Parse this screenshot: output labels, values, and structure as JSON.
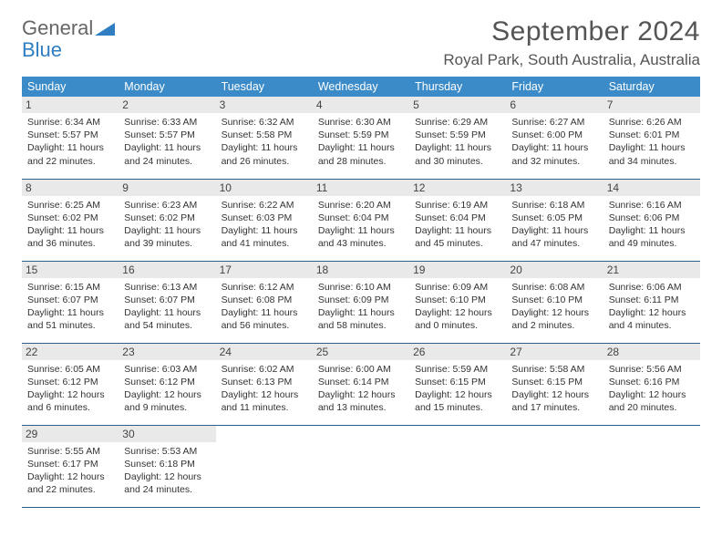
{
  "logo": {
    "text1": "General",
    "text2": "Blue"
  },
  "title": "September 2024",
  "location": "Royal Park, South Australia, Australia",
  "colors": {
    "header_bg": "#3b8bc9",
    "header_text": "#ffffff",
    "border": "#2f5d8c",
    "daynum_bg": "#e9e9e9",
    "text": "#333333",
    "logo_gray": "#666666",
    "logo_blue": "#2f7ec2"
  },
  "weekdays": [
    "Sunday",
    "Monday",
    "Tuesday",
    "Wednesday",
    "Thursday",
    "Friday",
    "Saturday"
  ],
  "weeks": [
    [
      {
        "n": "1",
        "sr": "Sunrise: 6:34 AM",
        "ss": "Sunset: 5:57 PM",
        "d1": "Daylight: 11 hours",
        "d2": "and 22 minutes."
      },
      {
        "n": "2",
        "sr": "Sunrise: 6:33 AM",
        "ss": "Sunset: 5:57 PM",
        "d1": "Daylight: 11 hours",
        "d2": "and 24 minutes."
      },
      {
        "n": "3",
        "sr": "Sunrise: 6:32 AM",
        "ss": "Sunset: 5:58 PM",
        "d1": "Daylight: 11 hours",
        "d2": "and 26 minutes."
      },
      {
        "n": "4",
        "sr": "Sunrise: 6:30 AM",
        "ss": "Sunset: 5:59 PM",
        "d1": "Daylight: 11 hours",
        "d2": "and 28 minutes."
      },
      {
        "n": "5",
        "sr": "Sunrise: 6:29 AM",
        "ss": "Sunset: 5:59 PM",
        "d1": "Daylight: 11 hours",
        "d2": "and 30 minutes."
      },
      {
        "n": "6",
        "sr": "Sunrise: 6:27 AM",
        "ss": "Sunset: 6:00 PM",
        "d1": "Daylight: 11 hours",
        "d2": "and 32 minutes."
      },
      {
        "n": "7",
        "sr": "Sunrise: 6:26 AM",
        "ss": "Sunset: 6:01 PM",
        "d1": "Daylight: 11 hours",
        "d2": "and 34 minutes."
      }
    ],
    [
      {
        "n": "8",
        "sr": "Sunrise: 6:25 AM",
        "ss": "Sunset: 6:02 PM",
        "d1": "Daylight: 11 hours",
        "d2": "and 36 minutes."
      },
      {
        "n": "9",
        "sr": "Sunrise: 6:23 AM",
        "ss": "Sunset: 6:02 PM",
        "d1": "Daylight: 11 hours",
        "d2": "and 39 minutes."
      },
      {
        "n": "10",
        "sr": "Sunrise: 6:22 AM",
        "ss": "Sunset: 6:03 PM",
        "d1": "Daylight: 11 hours",
        "d2": "and 41 minutes."
      },
      {
        "n": "11",
        "sr": "Sunrise: 6:20 AM",
        "ss": "Sunset: 6:04 PM",
        "d1": "Daylight: 11 hours",
        "d2": "and 43 minutes."
      },
      {
        "n": "12",
        "sr": "Sunrise: 6:19 AM",
        "ss": "Sunset: 6:04 PM",
        "d1": "Daylight: 11 hours",
        "d2": "and 45 minutes."
      },
      {
        "n": "13",
        "sr": "Sunrise: 6:18 AM",
        "ss": "Sunset: 6:05 PM",
        "d1": "Daylight: 11 hours",
        "d2": "and 47 minutes."
      },
      {
        "n": "14",
        "sr": "Sunrise: 6:16 AM",
        "ss": "Sunset: 6:06 PM",
        "d1": "Daylight: 11 hours",
        "d2": "and 49 minutes."
      }
    ],
    [
      {
        "n": "15",
        "sr": "Sunrise: 6:15 AM",
        "ss": "Sunset: 6:07 PM",
        "d1": "Daylight: 11 hours",
        "d2": "and 51 minutes."
      },
      {
        "n": "16",
        "sr": "Sunrise: 6:13 AM",
        "ss": "Sunset: 6:07 PM",
        "d1": "Daylight: 11 hours",
        "d2": "and 54 minutes."
      },
      {
        "n": "17",
        "sr": "Sunrise: 6:12 AM",
        "ss": "Sunset: 6:08 PM",
        "d1": "Daylight: 11 hours",
        "d2": "and 56 minutes."
      },
      {
        "n": "18",
        "sr": "Sunrise: 6:10 AM",
        "ss": "Sunset: 6:09 PM",
        "d1": "Daylight: 11 hours",
        "d2": "and 58 minutes."
      },
      {
        "n": "19",
        "sr": "Sunrise: 6:09 AM",
        "ss": "Sunset: 6:10 PM",
        "d1": "Daylight: 12 hours",
        "d2": "and 0 minutes."
      },
      {
        "n": "20",
        "sr": "Sunrise: 6:08 AM",
        "ss": "Sunset: 6:10 PM",
        "d1": "Daylight: 12 hours",
        "d2": "and 2 minutes."
      },
      {
        "n": "21",
        "sr": "Sunrise: 6:06 AM",
        "ss": "Sunset: 6:11 PM",
        "d1": "Daylight: 12 hours",
        "d2": "and 4 minutes."
      }
    ],
    [
      {
        "n": "22",
        "sr": "Sunrise: 6:05 AM",
        "ss": "Sunset: 6:12 PM",
        "d1": "Daylight: 12 hours",
        "d2": "and 6 minutes."
      },
      {
        "n": "23",
        "sr": "Sunrise: 6:03 AM",
        "ss": "Sunset: 6:12 PM",
        "d1": "Daylight: 12 hours",
        "d2": "and 9 minutes."
      },
      {
        "n": "24",
        "sr": "Sunrise: 6:02 AM",
        "ss": "Sunset: 6:13 PM",
        "d1": "Daylight: 12 hours",
        "d2": "and 11 minutes."
      },
      {
        "n": "25",
        "sr": "Sunrise: 6:00 AM",
        "ss": "Sunset: 6:14 PM",
        "d1": "Daylight: 12 hours",
        "d2": "and 13 minutes."
      },
      {
        "n": "26",
        "sr": "Sunrise: 5:59 AM",
        "ss": "Sunset: 6:15 PM",
        "d1": "Daylight: 12 hours",
        "d2": "and 15 minutes."
      },
      {
        "n": "27",
        "sr": "Sunrise: 5:58 AM",
        "ss": "Sunset: 6:15 PM",
        "d1": "Daylight: 12 hours",
        "d2": "and 17 minutes."
      },
      {
        "n": "28",
        "sr": "Sunrise: 5:56 AM",
        "ss": "Sunset: 6:16 PM",
        "d1": "Daylight: 12 hours",
        "d2": "and 20 minutes."
      }
    ],
    [
      {
        "n": "29",
        "sr": "Sunrise: 5:55 AM",
        "ss": "Sunset: 6:17 PM",
        "d1": "Daylight: 12 hours",
        "d2": "and 22 minutes."
      },
      {
        "n": "30",
        "sr": "Sunrise: 5:53 AM",
        "ss": "Sunset: 6:18 PM",
        "d1": "Daylight: 12 hours",
        "d2": "and 24 minutes."
      },
      null,
      null,
      null,
      null,
      null
    ]
  ]
}
